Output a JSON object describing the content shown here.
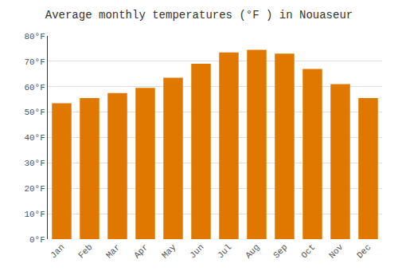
{
  "chart_data": {
    "type": "bar",
    "title": "Average monthly temperatures (°F ) in Nouaseur",
    "categories": [
      "Jan",
      "Feb",
      "Mar",
      "Apr",
      "May",
      "Jun",
      "Jul",
      "Aug",
      "Sep",
      "Oct",
      "Nov",
      "Dec"
    ],
    "values": [
      53.5,
      55.5,
      57.5,
      59.5,
      63.5,
      69.0,
      73.5,
      74.5,
      73.0,
      67.0,
      61.0,
      55.5
    ],
    "color": "#E07800",
    "ylim": [
      0,
      80
    ],
    "yticks": [
      {
        "value": 0,
        "label": "0°F"
      },
      {
        "value": 10,
        "label": "10°F"
      },
      {
        "value": 20,
        "label": "20°F"
      },
      {
        "value": 30,
        "label": "30°F"
      },
      {
        "value": 40,
        "label": "40°F"
      },
      {
        "value": 50,
        "label": "50°F"
      },
      {
        "value": 60,
        "label": "60°F"
      },
      {
        "value": 70,
        "label": "70°F"
      },
      {
        "value": 80,
        "label": "80°F"
      }
    ],
    "grid": true
  }
}
